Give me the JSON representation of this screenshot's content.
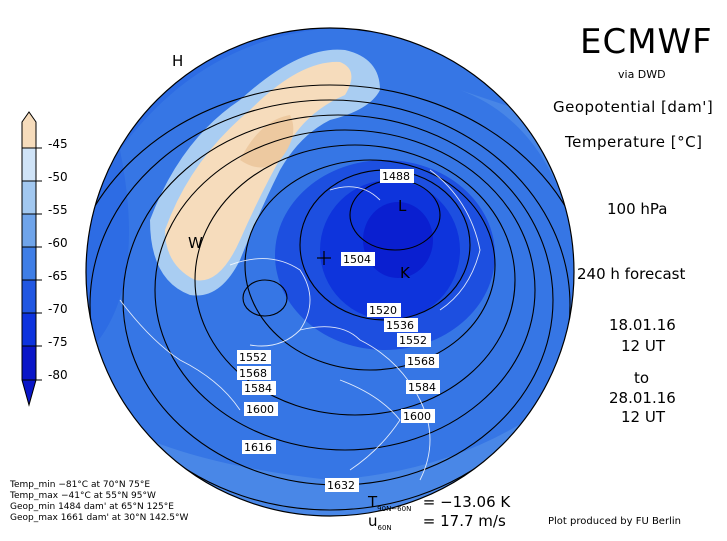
{
  "header": {
    "brand": "ECMWF",
    "source": "via DWD",
    "field1": "Geopotential [dam']",
    "field2": "Temperature [°C]",
    "level": "100 hPa",
    "forecast": "240 h forecast",
    "init_date": "18.01.16",
    "init_time": "12 UT",
    "to": "to",
    "valid_date": "28.01.16",
    "valid_time": "12 UT"
  },
  "colorbar": {
    "labels": [
      "-45",
      "-50",
      "-55",
      "-60",
      "-65",
      "-70",
      "-75",
      "-80"
    ],
    "colors": [
      "#f6dcbc",
      "#cfe3f7",
      "#a2c8f0",
      "#6fa4ea",
      "#3f7ee6",
      "#2157e2",
      "#0d33de",
      "#0a16c8"
    ]
  },
  "stats": {
    "temp_min": "Temp_min −81°C at 70°N 75°E",
    "temp_max": "Temp_max −41°C at 55°N 95°W",
    "geop_min": "Geop_min 1484 dam' at 65°N 125°E",
    "geop_max": "Geop_max 1661 dam' at 30°N 142.5°W"
  },
  "means": {
    "t_symbol": "T",
    "t_sub": "90N−60N",
    "t_value": "= −13.06 K",
    "u_symbol": "u",
    "u_sub": "60N",
    "u_value": "= 17.7 m/s"
  },
  "credit": "Plot produced by FU Berlin",
  "map": {
    "contour_labels": [
      "1488",
      "1504",
      "1520",
      "1536",
      "1552",
      "1552",
      "1568",
      "1568",
      "1584",
      "1584",
      "1600",
      "1600",
      "1616",
      "1632"
    ],
    "pressure_marks": [
      "H",
      "L",
      "W",
      "K"
    ]
  }
}
